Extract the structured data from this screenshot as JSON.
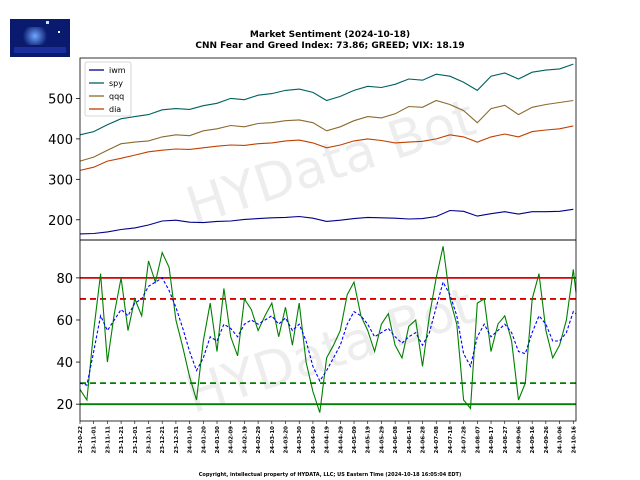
{
  "header": {
    "title_line1": "Market Sentiment (2024-10-18)",
    "title_line2": "CNN Fear and Greed Index: 73.86; GREED; VIX: 18.19"
  },
  "footer": {
    "copyright": "Copyright, intellectual property of HYDATA, LLC; US Eastern Time (2024-10-18 16:05:04 EDT)"
  },
  "watermark": "HYData Bot",
  "chart_data": [
    {
      "type": "line",
      "panel": "top",
      "ylim": [
        150,
        600
      ],
      "yticks": [
        200,
        300,
        400,
        500
      ],
      "grid": false,
      "legend_position": "top-left",
      "x_range": [
        "2023-10-22",
        "2024-10-18"
      ],
      "series": [
        {
          "name": "iwm",
          "color": "#00008b",
          "x": [
            "2023-10-22",
            "2023-11-01",
            "2023-11-11",
            "2023-11-21",
            "2023-12-01",
            "2023-12-11",
            "2023-12-21",
            "2023-12-31",
            "2024-01-10",
            "2024-01-20",
            "2024-01-30",
            "2024-02-09",
            "2024-02-19",
            "2024-02-29",
            "2024-03-10",
            "2024-03-20",
            "2024-03-30",
            "2024-04-09",
            "2024-04-19",
            "2024-04-29",
            "2024-05-09",
            "2024-05-19",
            "2024-05-29",
            "2024-06-08",
            "2024-06-18",
            "2024-06-28",
            "2024-07-08",
            "2024-07-18",
            "2024-07-28",
            "2024-08-07",
            "2024-08-17",
            "2024-08-27",
            "2024-09-06",
            "2024-09-16",
            "2024-09-26",
            "2024-10-06",
            "2024-10-16"
          ],
          "values": [
            165,
            166,
            170,
            176,
            180,
            187,
            197,
            199,
            194,
            193,
            196,
            197,
            201,
            203,
            205,
            206,
            208,
            204,
            196,
            199,
            203,
            206,
            205,
            204,
            202,
            203,
            208,
            223,
            221,
            209,
            215,
            220,
            214,
            220,
            220,
            221,
            226
          ]
        },
        {
          "name": "spy",
          "color": "#006060",
          "x": [
            "2023-10-22",
            "2023-11-01",
            "2023-11-11",
            "2023-11-21",
            "2023-12-01",
            "2023-12-11",
            "2023-12-21",
            "2023-12-31",
            "2024-01-10",
            "2024-01-20",
            "2024-01-30",
            "2024-02-09",
            "2024-02-19",
            "2024-02-29",
            "2024-03-10",
            "2024-03-20",
            "2024-03-30",
            "2024-04-09",
            "2024-04-19",
            "2024-04-29",
            "2024-05-09",
            "2024-05-19",
            "2024-05-29",
            "2024-06-08",
            "2024-06-18",
            "2024-06-28",
            "2024-07-08",
            "2024-07-18",
            "2024-07-28",
            "2024-08-07",
            "2024-08-17",
            "2024-08-27",
            "2024-09-06",
            "2024-09-16",
            "2024-09-26",
            "2024-10-06",
            "2024-10-16"
          ],
          "values": [
            410,
            418,
            435,
            450,
            455,
            460,
            472,
            475,
            473,
            482,
            488,
            500,
            497,
            508,
            512,
            520,
            523,
            515,
            495,
            505,
            520,
            530,
            527,
            535,
            548,
            545,
            560,
            555,
            540,
            520,
            555,
            563,
            548,
            565,
            570,
            573,
            585
          ]
        },
        {
          "name": "qqq",
          "color": "#8b6b2e",
          "x": [
            "2023-10-22",
            "2023-11-01",
            "2023-11-11",
            "2023-11-21",
            "2023-12-01",
            "2023-12-11",
            "2023-12-21",
            "2023-12-31",
            "2024-01-10",
            "2024-01-20",
            "2024-01-30",
            "2024-02-09",
            "2024-02-19",
            "2024-02-29",
            "2024-03-10",
            "2024-03-20",
            "2024-03-30",
            "2024-04-09",
            "2024-04-19",
            "2024-04-29",
            "2024-05-09",
            "2024-05-19",
            "2024-05-29",
            "2024-06-08",
            "2024-06-18",
            "2024-06-28",
            "2024-07-08",
            "2024-07-18",
            "2024-07-28",
            "2024-08-07",
            "2024-08-17",
            "2024-08-27",
            "2024-09-06",
            "2024-09-16",
            "2024-09-26",
            "2024-10-06",
            "2024-10-16"
          ],
          "values": [
            345,
            355,
            372,
            388,
            392,
            395,
            405,
            410,
            408,
            420,
            425,
            433,
            430,
            438,
            440,
            445,
            447,
            440,
            420,
            430,
            445,
            455,
            452,
            462,
            480,
            478,
            495,
            485,
            470,
            440,
            475,
            483,
            460,
            478,
            485,
            490,
            495
          ]
        },
        {
          "name": "dia",
          "color": "#c04000",
          "x": [
            "2023-10-22",
            "2023-11-01",
            "2023-11-11",
            "2023-11-21",
            "2023-12-01",
            "2023-12-11",
            "2023-12-21",
            "2023-12-31",
            "2024-01-10",
            "2024-01-20",
            "2024-01-30",
            "2024-02-09",
            "2024-02-19",
            "2024-02-29",
            "2024-03-10",
            "2024-03-20",
            "2024-03-30",
            "2024-04-09",
            "2024-04-19",
            "2024-04-29",
            "2024-05-09",
            "2024-05-19",
            "2024-05-29",
            "2024-06-08",
            "2024-06-18",
            "2024-06-28",
            "2024-07-08",
            "2024-07-18",
            "2024-07-28",
            "2024-08-07",
            "2024-08-17",
            "2024-08-27",
            "2024-09-06",
            "2024-09-16",
            "2024-09-26",
            "2024-10-06",
            "2024-10-16"
          ],
          "values": [
            322,
            330,
            345,
            352,
            360,
            368,
            372,
            375,
            374,
            378,
            382,
            385,
            384,
            388,
            390,
            395,
            397,
            390,
            378,
            385,
            395,
            400,
            396,
            390,
            392,
            394,
            400,
            410,
            405,
            392,
            405,
            412,
            405,
            418,
            422,
            425,
            432
          ]
        }
      ]
    },
    {
      "type": "line",
      "panel": "bottom",
      "ylim": [
        12,
        98
      ],
      "yticks": [
        20,
        40,
        60,
        80
      ],
      "grid": false,
      "x_tick_labels": [
        "23-10-22",
        "23-11-01",
        "23-11-11",
        "23-11-21",
        "23-12-01",
        "23-12-11",
        "23-12-21",
        "23-12-31",
        "24-01-10",
        "24-01-20",
        "24-01-30",
        "24-02-09",
        "24-02-19",
        "24-02-29",
        "24-03-10",
        "24-03-20",
        "24-03-30",
        "24-04-09",
        "24-04-19",
        "24-04-29",
        "24-05-09",
        "24-05-19",
        "24-05-29",
        "24-06-08",
        "24-06-18",
        "24-06-28",
        "24-07-08",
        "24-07-18",
        "24-07-28",
        "24-08-07",
        "24-08-17",
        "24-08-27",
        "24-09-06",
        "24-09-16",
        "24-09-26",
        "24-10-06",
        "24-10-16"
      ],
      "series": [
        {
          "color": "#008000",
          "style": "solid",
          "x": [
            "2023-10-22",
            "2023-10-27",
            "2023-11-01",
            "2023-11-06",
            "2023-11-11",
            "2023-11-16",
            "2023-11-21",
            "2023-11-26",
            "2023-12-01",
            "2023-12-06",
            "2023-12-11",
            "2023-12-16",
            "2023-12-21",
            "2023-12-26",
            "2023-12-31",
            "2024-01-05",
            "2024-01-10",
            "2024-01-15",
            "2024-01-20",
            "2024-01-25",
            "2024-01-30",
            "2024-02-04",
            "2024-02-09",
            "2024-02-14",
            "2024-02-19",
            "2024-02-24",
            "2024-02-29",
            "2024-03-05",
            "2024-03-10",
            "2024-03-15",
            "2024-03-20",
            "2024-03-25",
            "2024-03-30",
            "2024-04-04",
            "2024-04-09",
            "2024-04-14",
            "2024-04-19",
            "2024-04-24",
            "2024-04-29",
            "2024-05-04",
            "2024-05-09",
            "2024-05-14",
            "2024-05-19",
            "2024-05-24",
            "2024-05-29",
            "2024-06-03",
            "2024-06-08",
            "2024-06-13",
            "2024-06-18",
            "2024-06-23",
            "2024-06-28",
            "2024-07-03",
            "2024-07-08",
            "2024-07-13",
            "2024-07-18",
            "2024-07-23",
            "2024-07-28",
            "2024-08-02",
            "2024-08-07",
            "2024-08-12",
            "2024-08-17",
            "2024-08-22",
            "2024-08-27",
            "2024-09-01",
            "2024-09-06",
            "2024-09-11",
            "2024-09-16",
            "2024-09-21",
            "2024-09-26",
            "2024-10-01",
            "2024-10-06",
            "2024-10-11",
            "2024-10-16",
            "2024-10-18"
          ],
          "values": [
            27,
            22,
            55,
            82,
            40,
            63,
            80,
            55,
            70,
            62,
            88,
            78,
            92,
            85,
            60,
            47,
            33,
            22,
            50,
            68,
            45,
            75,
            52,
            43,
            70,
            65,
            55,
            62,
            68,
            52,
            66,
            48,
            68,
            40,
            26,
            16,
            42,
            48,
            55,
            72,
            78,
            62,
            55,
            45,
            58,
            63,
            48,
            42,
            57,
            60,
            38,
            62,
            80,
            95,
            70,
            58,
            22,
            18,
            68,
            70,
            45,
            58,
            62,
            50,
            22,
            30,
            70,
            82,
            55,
            42,
            48,
            60,
            84,
            73
          ]
        },
        {
          "color": "#0000ff",
          "style": "dashed",
          "x": [
            "2023-10-22",
            "2023-10-27",
            "2023-11-01",
            "2023-11-06",
            "2023-11-11",
            "2023-11-16",
            "2023-11-21",
            "2023-11-26",
            "2023-12-01",
            "2023-12-06",
            "2023-12-11",
            "2023-12-16",
            "2023-12-21",
            "2023-12-26",
            "2023-12-31",
            "2024-01-05",
            "2024-01-10",
            "2024-01-15",
            "2024-01-20",
            "2024-01-25",
            "2024-01-30",
            "2024-02-04",
            "2024-02-09",
            "2024-02-14",
            "2024-02-19",
            "2024-02-24",
            "2024-02-29",
            "2024-03-05",
            "2024-03-10",
            "2024-03-15",
            "2024-03-20",
            "2024-03-25",
            "2024-03-30",
            "2024-04-04",
            "2024-04-09",
            "2024-04-14",
            "2024-04-19",
            "2024-04-24",
            "2024-04-29",
            "2024-05-04",
            "2024-05-09",
            "2024-05-14",
            "2024-05-19",
            "2024-05-24",
            "2024-05-29",
            "2024-06-03",
            "2024-06-08",
            "2024-06-13",
            "2024-06-18",
            "2024-06-23",
            "2024-06-28",
            "2024-07-03",
            "2024-07-08",
            "2024-07-13",
            "2024-07-18",
            "2024-07-23",
            "2024-07-28",
            "2024-08-02",
            "2024-08-07",
            "2024-08-12",
            "2024-08-17",
            "2024-08-22",
            "2024-08-27",
            "2024-09-01",
            "2024-09-06",
            "2024-09-11",
            "2024-09-16",
            "2024-09-21",
            "2024-09-26",
            "2024-10-01",
            "2024-10-06",
            "2024-10-11",
            "2024-10-16",
            "2024-10-18"
          ],
          "values": [
            30,
            29,
            45,
            62,
            55,
            60,
            65,
            62,
            68,
            70,
            76,
            78,
            80,
            74,
            66,
            56,
            45,
            36,
            42,
            52,
            50,
            58,
            56,
            52,
            58,
            60,
            58,
            60,
            62,
            58,
            61,
            55,
            58,
            50,
            38,
            31,
            36,
            42,
            48,
            58,
            64,
            62,
            58,
            52,
            54,
            56,
            52,
            49,
            52,
            54,
            48,
            54,
            66,
            78,
            72,
            62,
            44,
            38,
            52,
            58,
            52,
            55,
            58,
            54,
            45,
            44,
            54,
            62,
            58,
            50,
            50,
            54,
            64,
            63
          ]
        }
      ],
      "reference_lines": [
        {
          "value": 80,
          "color": "#dd0000",
          "style": "solid"
        },
        {
          "value": 70,
          "color": "#dd0000",
          "style": "dashed"
        },
        {
          "value": 30,
          "color": "#008000",
          "style": "dashed"
        },
        {
          "value": 20,
          "color": "#008000",
          "style": "solid"
        }
      ]
    }
  ]
}
